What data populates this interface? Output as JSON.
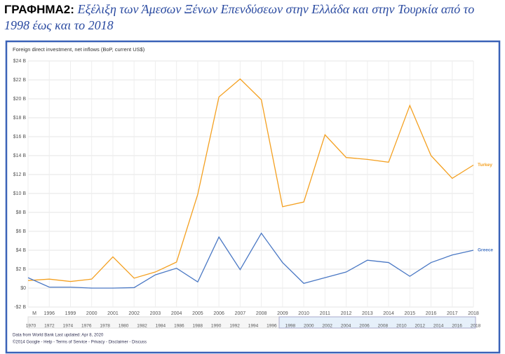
{
  "heading": {
    "label": "ΓΡΑΦΗΜΑ2:",
    "title": "Εξέλιξη των Άμεσων Ξένων Επενδύσεων στην Ελλάδα και στην Τουρκία από το 1998 έως και το 2018"
  },
  "chart_data": {
    "type": "line",
    "title": "Foreign direct investment, net inflows (BoP, current US$)",
    "categories": [
      "M",
      "1996",
      "1999",
      "2000",
      "2001",
      "2002",
      "2003",
      "2004",
      "2005",
      "2006",
      "2007",
      "2008",
      "2009",
      "2010",
      "2011",
      "2012",
      "2013",
      "2014",
      "2015",
      "2016",
      "2017",
      "2018"
    ],
    "series": [
      {
        "name": "Turkey",
        "color": "#f4a020",
        "values": [
          0.8,
          0.95,
          0.7,
          0.95,
          3.3,
          1.05,
          1.7,
          2.75,
          9.9,
          20.2,
          22.1,
          19.9,
          8.6,
          9.1,
          16.2,
          13.8,
          13.6,
          13.3,
          19.3,
          14.0,
          11.6,
          13.0
        ]
      },
      {
        "name": "Greece",
        "color": "#4a78c4",
        "values": [
          1.1,
          0.1,
          0.1,
          0.0,
          0.0,
          0.05,
          1.4,
          2.1,
          0.65,
          5.4,
          1.95,
          5.8,
          2.7,
          0.5,
          1.1,
          1.7,
          2.95,
          2.7,
          1.25,
          2.7,
          3.5,
          4.0
        ]
      }
    ],
    "ylim": [
      -2,
      24
    ],
    "yticks": [
      {
        "value": -2,
        "label": "-$2 B"
      },
      {
        "value": 0,
        "label": "$0"
      },
      {
        "value": 2,
        "label": "$2 B"
      },
      {
        "value": 4,
        "label": "$4 B"
      },
      {
        "value": 6,
        "label": "$6 B"
      },
      {
        "value": 8,
        "label": "$8 B"
      },
      {
        "value": 10,
        "label": "$10 B"
      },
      {
        "value": 12,
        "label": "$12 B"
      },
      {
        "value": 14,
        "label": "$14 B"
      },
      {
        "value": 16,
        "label": "$16 B"
      },
      {
        "value": 18,
        "label": "$18 B"
      },
      {
        "value": 20,
        "label": "$20 B"
      },
      {
        "value": 22,
        "label": "$22 B"
      },
      {
        "value": 24,
        "label": "$24 B"
      }
    ],
    "grid": true,
    "timeline_labels": [
      "1970",
      "1972",
      "1974",
      "1976",
      "1978",
      "1980",
      "1982",
      "1984",
      "1986",
      "1988",
      "1990",
      "1992",
      "1994",
      "1996",
      "1998",
      "2000",
      "2002",
      "2004",
      "2006",
      "2008",
      "2010",
      "2012",
      "2014",
      "2016",
      "2018"
    ],
    "footer": [
      "Data from World Bank    Last updated: Apr 8, 2020",
      "©2014 Google - Help - Terms of Service - Privacy - Disclaimer - Discuss"
    ]
  }
}
